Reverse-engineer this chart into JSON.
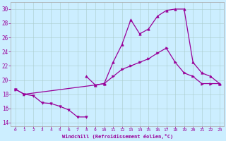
{
  "xlabel": "Windchill (Refroidissement éolien,°C)",
  "background_color": "#cceeff",
  "line_color": "#990099",
  "xlim": [
    -0.5,
    23.5
  ],
  "ylim": [
    13.5,
    31.0
  ],
  "yticks": [
    14,
    16,
    18,
    20,
    22,
    24,
    26,
    28,
    30
  ],
  "xticks": [
    0,
    1,
    2,
    3,
    4,
    5,
    6,
    7,
    8,
    9,
    10,
    11,
    12,
    13,
    14,
    15,
    16,
    17,
    18,
    19,
    20,
    21,
    22,
    23
  ],
  "series": [
    {
      "x": [
        0,
        1,
        2,
        3,
        4,
        5,
        6,
        7,
        8
      ],
      "y": [
        18.7,
        18.0,
        17.8,
        16.8,
        16.7,
        16.3,
        15.8,
        14.8,
        14.8
      ],
      "marker": "v"
    },
    {
      "x": [
        0,
        1,
        9,
        10,
        11,
        12,
        13,
        14,
        15,
        16,
        17,
        18,
        19,
        20,
        21,
        22,
        23
      ],
      "y": [
        18.7,
        18.0,
        19.3,
        19.5,
        20.5,
        21.5,
        22.0,
        22.5,
        23.0,
        23.8,
        24.5,
        22.5,
        21.0,
        20.5,
        19.5,
        19.5,
        19.5
      ],
      "marker": ">"
    },
    {
      "x": [
        8,
        9,
        10,
        11,
        12,
        13,
        14,
        15,
        16,
        17,
        18,
        19,
        20,
        21,
        22,
        23
      ],
      "y": [
        20.5,
        19.3,
        19.5,
        22.5,
        25.0,
        28.5,
        26.5,
        27.2,
        29.0,
        29.8,
        30.0,
        30.0,
        22.5,
        21.0,
        20.5,
        19.5
      ],
      "marker": "^"
    }
  ]
}
